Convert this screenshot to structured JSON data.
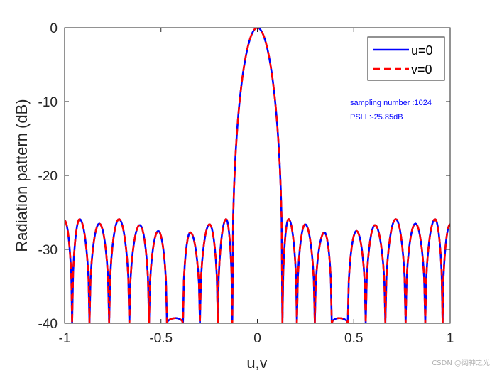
{
  "chart_data": {
    "type": "line",
    "title": "",
    "xlabel": "u,v",
    "ylabel": "Radiation pattern (dB)",
    "xlim": [
      -1,
      1
    ],
    "ylim": [
      -40,
      0
    ],
    "xticks": [
      -1,
      -0.5,
      0,
      0.5,
      1
    ],
    "xtick_labels": [
      "-1",
      "-0.5",
      "0",
      "0.5",
      "1"
    ],
    "yticks": [
      0,
      -10,
      -20,
      -30,
      -40
    ],
    "ytick_labels": [
      "0",
      "-10",
      "-20",
      "-30",
      "-40"
    ],
    "grid": false,
    "legend_position": "top-right",
    "main_lobe": {
      "peak_x": 0,
      "peak_y": 0,
      "first_nulls": [
        -0.13,
        0.13
      ]
    },
    "sidelobe_peaks": {
      "x": [
        -1.0,
        -0.922,
        -0.82,
        -0.718,
        -0.61,
        -0.514,
        -0.424,
        -0.348,
        -0.248,
        -0.162,
        0.162,
        0.248,
        0.348,
        0.424,
        0.514,
        0.61,
        0.718,
        0.82,
        0.922,
        1.0
      ],
      "y": [
        -26.1,
        -25.9,
        -26.5,
        -25.9,
        -26.7,
        -27.5,
        -39.3,
        -27.7,
        -26.6,
        -25.9,
        -25.9,
        -26.6,
        -27.7,
        -39.3,
        -27.5,
        -26.7,
        -25.9,
        -26.5,
        -25.9,
        -26.6
      ]
    },
    "series": [
      {
        "name": "u=0",
        "color": "#0000ff",
        "style": "solid"
      },
      {
        "name": "v=0",
        "color": "#ff0000",
        "style": "dashed"
      }
    ],
    "annotations": [
      "sampling number :1024",
      "PSLL:-25.85dB"
    ],
    "annotation_color": "#0000ff"
  },
  "watermark": "CSDN @阔神之光"
}
